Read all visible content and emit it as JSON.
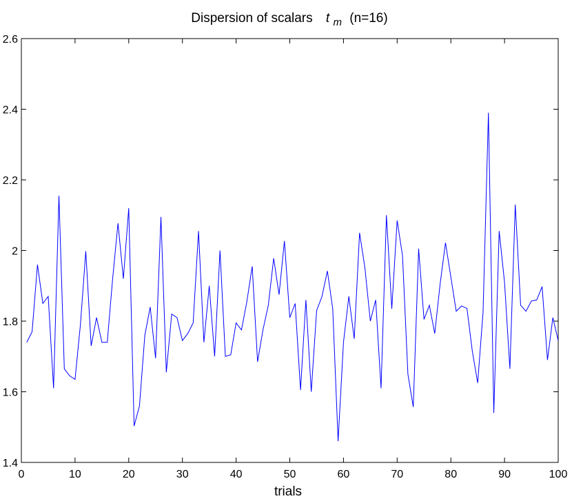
{
  "chart_data": {
    "type": "line",
    "title": {
      "prefix": "Dispersion of  scalars",
      "symbol": "t",
      "subscript": "m",
      "suffix": "(n=16)"
    },
    "xlabel": "trials",
    "ylabel": "",
    "xlim": [
      0,
      100
    ],
    "ylim": [
      1.4,
      2.6
    ],
    "xticks": [
      0,
      10,
      20,
      30,
      40,
      50,
      60,
      70,
      80,
      90,
      100
    ],
    "yticks": [
      1.4,
      1.6,
      1.8,
      2,
      2.2,
      2.4,
      2.6
    ],
    "xtick_labels": [
      "0",
      "10",
      "20",
      "30",
      "40",
      "50",
      "60",
      "70",
      "80",
      "90",
      "100"
    ],
    "ytick_labels": [
      "1.4",
      "1.6",
      "1.8",
      "2",
      "2.2",
      "2.4",
      "2.6"
    ],
    "grid": false,
    "line_color": "#0000ff",
    "series": [
      {
        "x": [
          1,
          2,
          3,
          4,
          5,
          6,
          7,
          8,
          9,
          10,
          11,
          12,
          13,
          14,
          15,
          16,
          17,
          18,
          19,
          20,
          21,
          22,
          23,
          24,
          25,
          26,
          27,
          28,
          29,
          30,
          31,
          32,
          33,
          34,
          35,
          36,
          37,
          38,
          39,
          40,
          41,
          42,
          43,
          44,
          45,
          46,
          47,
          48,
          49,
          50,
          51,
          52,
          53,
          54,
          55,
          56,
          57,
          58,
          59,
          60,
          61,
          62,
          63,
          64,
          65,
          66,
          67,
          68,
          69,
          70,
          71,
          72,
          73,
          74,
          75,
          76,
          77,
          78,
          79,
          80,
          81,
          82,
          83,
          84,
          85,
          86,
          87,
          88,
          89,
          90,
          91,
          92,
          93,
          94,
          95,
          96,
          97,
          98,
          99,
          100
        ],
        "values": [
          1.74,
          1.77,
          1.96,
          1.85,
          1.87,
          1.61,
          2.155,
          1.665,
          1.645,
          1.635,
          1.79,
          1.998,
          1.73,
          1.81,
          1.74,
          1.74,
          1.92,
          2.077,
          1.92,
          2.12,
          1.503,
          1.56,
          1.76,
          1.84,
          1.695,
          2.095,
          1.655,
          1.82,
          1.81,
          1.745,
          1.765,
          1.795,
          2.055,
          1.74,
          1.9,
          1.7,
          2.0,
          1.7,
          1.705,
          1.795,
          1.775,
          1.855,
          1.955,
          1.685,
          1.775,
          1.845,
          1.978,
          1.875,
          2.027,
          1.81,
          1.85,
          1.605,
          1.86,
          1.6,
          1.83,
          1.87,
          1.942,
          1.835,
          1.46,
          1.74,
          1.87,
          1.75,
          2.05,
          1.95,
          1.8,
          1.86,
          1.61,
          2.1,
          1.835,
          2.085,
          1.985,
          1.65,
          1.557,
          2.005,
          1.805,
          1.845,
          1.765,
          1.905,
          2.022,
          1.925,
          1.828,
          1.843,
          1.836,
          1.715,
          1.625,
          1.825,
          2.39,
          1.54,
          2.055,
          1.91,
          1.665,
          2.13,
          1.845,
          1.828,
          1.857,
          1.86,
          1.898,
          1.69,
          1.81,
          1.745
        ]
      }
    ]
  }
}
